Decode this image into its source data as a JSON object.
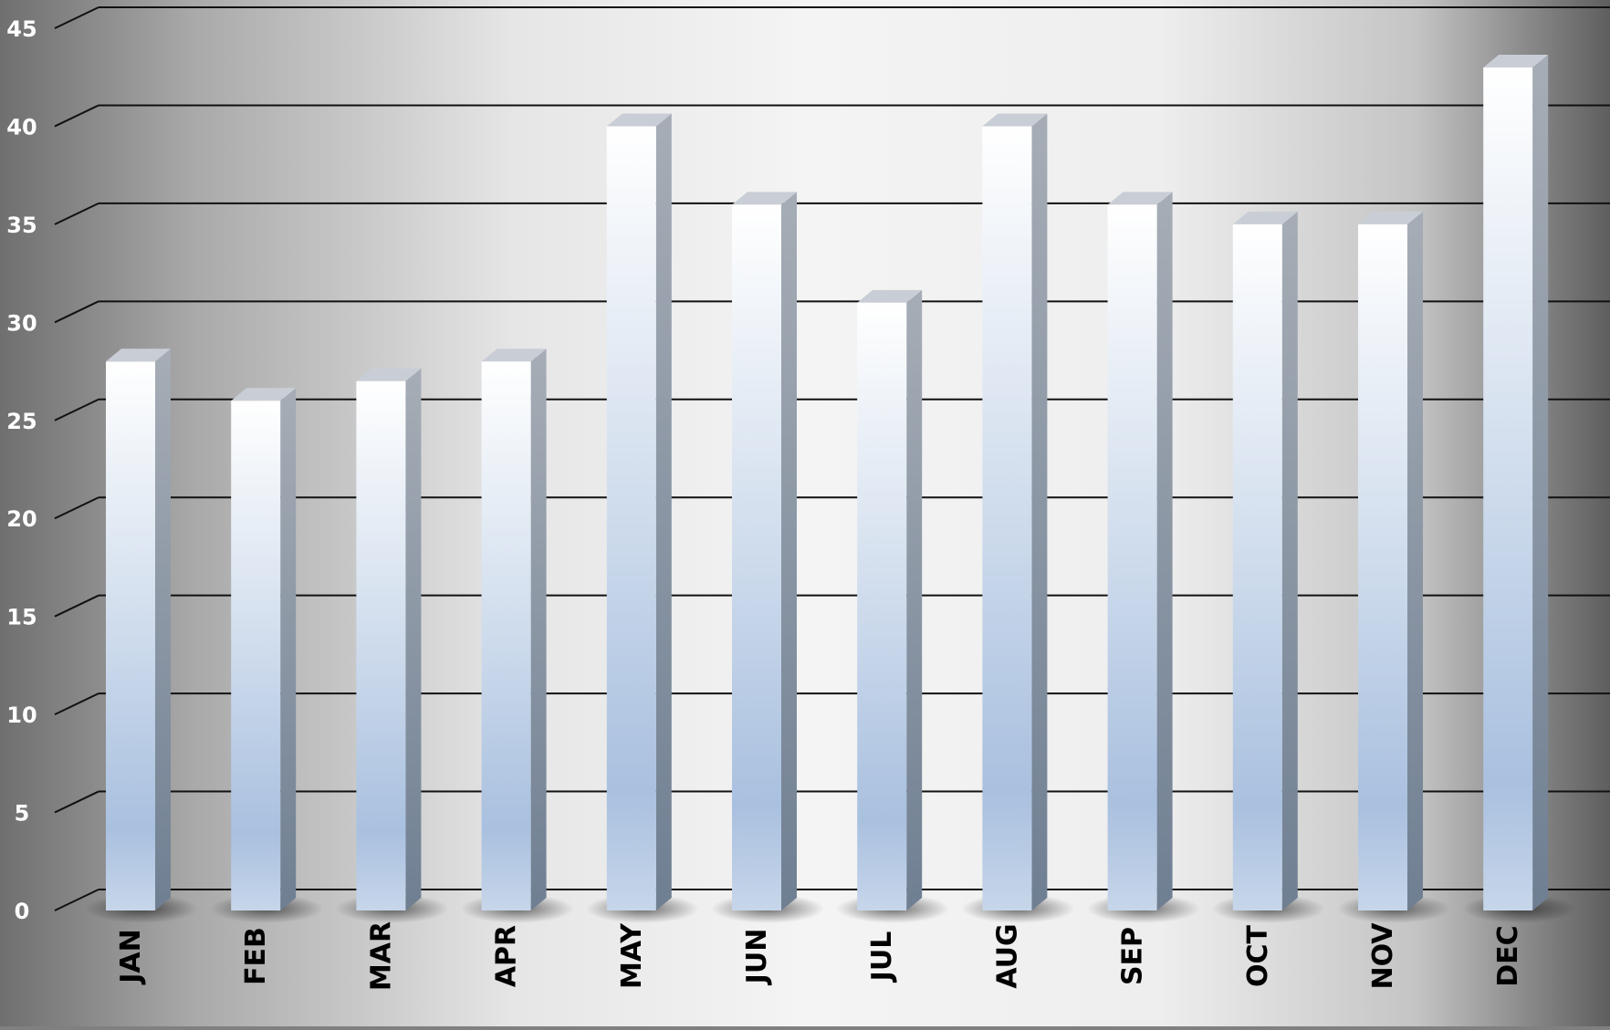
{
  "chart_data": {
    "type": "bar",
    "categories": [
      "JAN",
      "FEB",
      "MAR",
      "APR",
      "MAY",
      "JUN",
      "JUL",
      "AUG",
      "SEP",
      "OCT",
      "NOV",
      "DEC"
    ],
    "values": [
      28,
      26,
      27,
      28,
      40,
      36,
      31,
      40,
      36,
      35,
      35,
      43
    ],
    "ylim": [
      0,
      45
    ],
    "yticks": [
      0,
      5,
      10,
      15,
      20,
      25,
      30,
      35,
      40,
      45
    ],
    "grid": true,
    "style": "3d-columns"
  },
  "colors": {
    "background_edge": "#7a7a7a",
    "background_center": "#f2f2f2",
    "gridline": "#111111",
    "bar_top": "#ffffff",
    "bar_bottom": "#9fb6d6",
    "bar_side": "#7d8a98",
    "bar_cap": "#c9ced6",
    "tick_label": "#ffffff",
    "category_label": "#000000"
  }
}
